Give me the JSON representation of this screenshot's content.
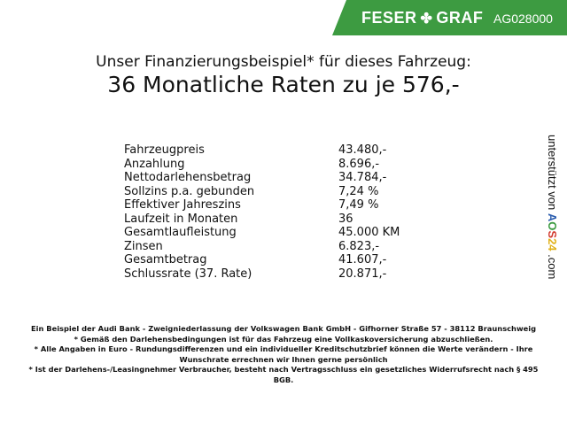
{
  "header": {
    "brand_left": "FESER",
    "brand_right": "GRAF",
    "brand_icon": "clover-icon",
    "dealer_code": "AG028000",
    "brand_color": "#3d9b41"
  },
  "title": {
    "line1": "Unser Finanzierungsbeispiel* für dieses Fahrzeug:",
    "line2": "36 Monatliche Raten zu je 576,-"
  },
  "rows": [
    {
      "label": "Fahrzeugpreis",
      "value": "43.480,-"
    },
    {
      "label": "Anzahlung",
      "value": "8.696,-"
    },
    {
      "label": "Nettodarlehensbetrag",
      "value": "34.784,-"
    },
    {
      "label": "Sollzins p.a. gebunden",
      "value": "7,24 %"
    },
    {
      "label": "Effektiver Jahreszins",
      "value": "7,49 %"
    },
    {
      "label": "Laufzeit in Monaten",
      "value": "36"
    },
    {
      "label": "Gesamtlaufleistung",
      "value": "45.000 KM"
    },
    {
      "label": "Zinsen",
      "value": "6.823,-"
    },
    {
      "label": "Gesamtbetrag",
      "value": "41.607,-"
    },
    {
      "label": "Schlussrate (37. Rate)",
      "value": "20.871,-"
    }
  ],
  "side": {
    "prefix": "unterstützt von ",
    "logo": [
      "A",
      "O",
      "S",
      "24"
    ],
    "suffix": ".com"
  },
  "footer": [
    "Ein Beispiel der Audi Bank - Zweigniederlassung der Volkswagen Bank GmbH - Gifhorner Straße 57 - 38112 Braunschweig",
    "* Gemäß den Darlehensbedingungen ist für das Fahrzeug eine Vollkaskoversicherung abzuschließen.",
    "* Alle Angaben in Euro - Rundungsdifferenzen und ein individueller Kreditschutzbrief können die Werte verändern - Ihre Wunschrate errechnen wir Ihnen gerne persönlich",
    "* Ist der Darlehens-/Leasingnehmer Verbraucher, besteht nach Vertragsschluss ein gesetzliches Widerrufsrecht nach § 495 BGB."
  ]
}
